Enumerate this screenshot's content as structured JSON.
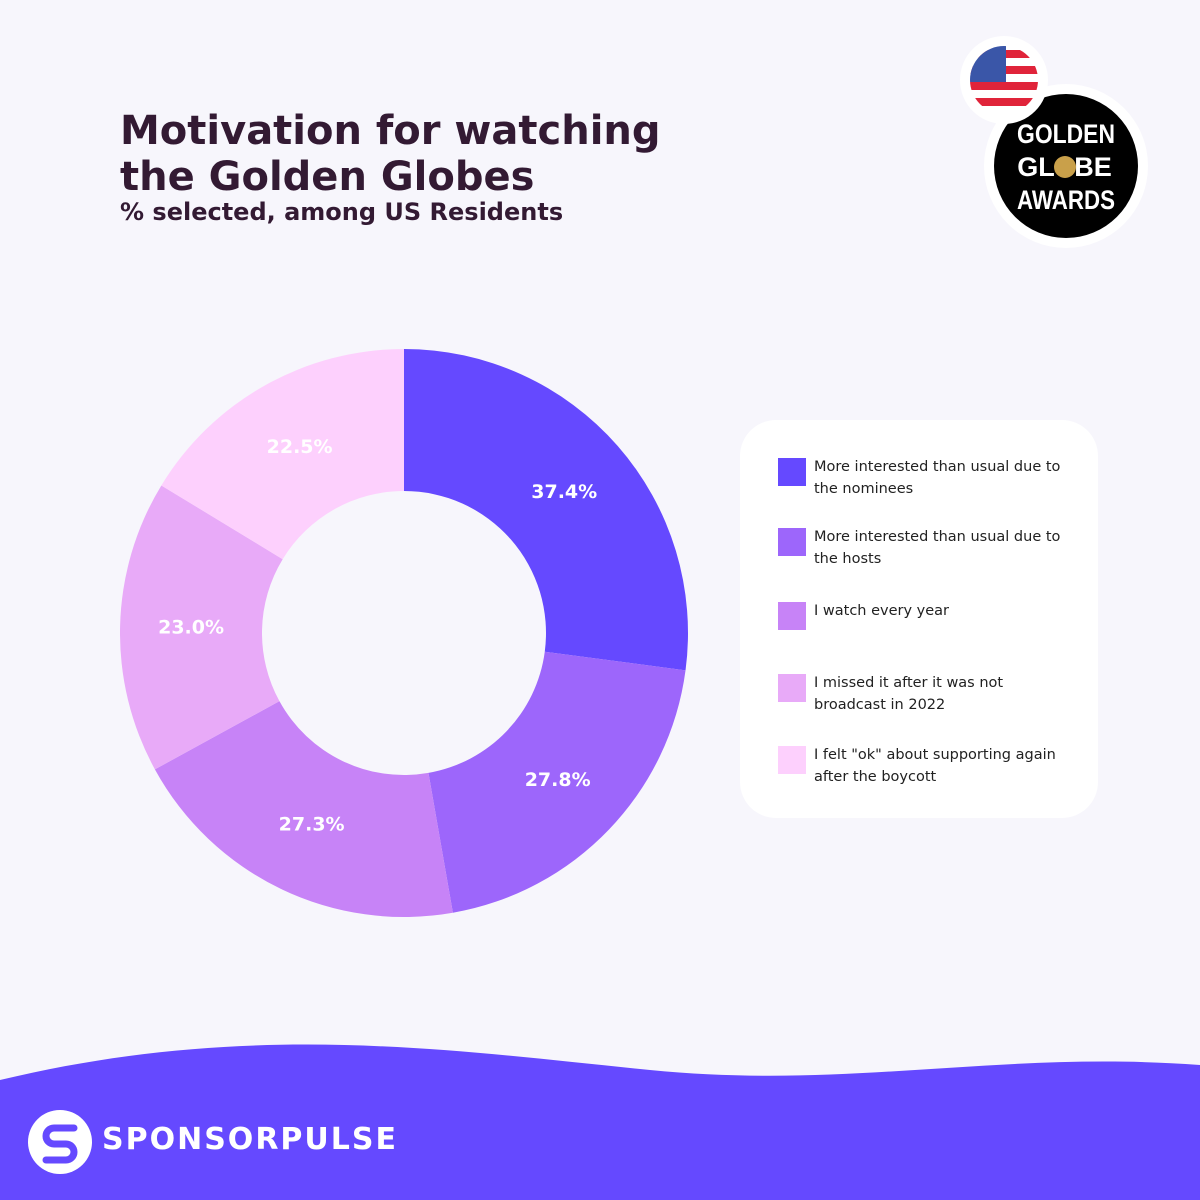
{
  "chart_data": {
    "type": "donut",
    "title": "Motivation for watching the Golden Globes",
    "subtitle": "% selected, among US Residents",
    "categories": [
      "More interested than usual due to the nominees",
      "More interested than usual due to the hosts",
      "I watch every year",
      "I missed it after it was not broadcast in 2022",
      "I felt \"ok\" about supporting again after the boycott"
    ],
    "values": [
      37.4,
      27.8,
      27.3,
      23.0,
      22.5
    ],
    "value_labels": [
      "37.4%",
      "27.8%",
      "27.3%",
      "23.0%",
      "22.5%"
    ],
    "colors": [
      "#6549ff",
      "#9d66fb",
      "#c783f7",
      "#e8aaf8",
      "#fdd0fd"
    ]
  },
  "logo": {
    "lines": [
      "GOLDEN",
      "GL",
      "BE",
      "AWARDS"
    ]
  },
  "brand": "SPONSORPULSE"
}
